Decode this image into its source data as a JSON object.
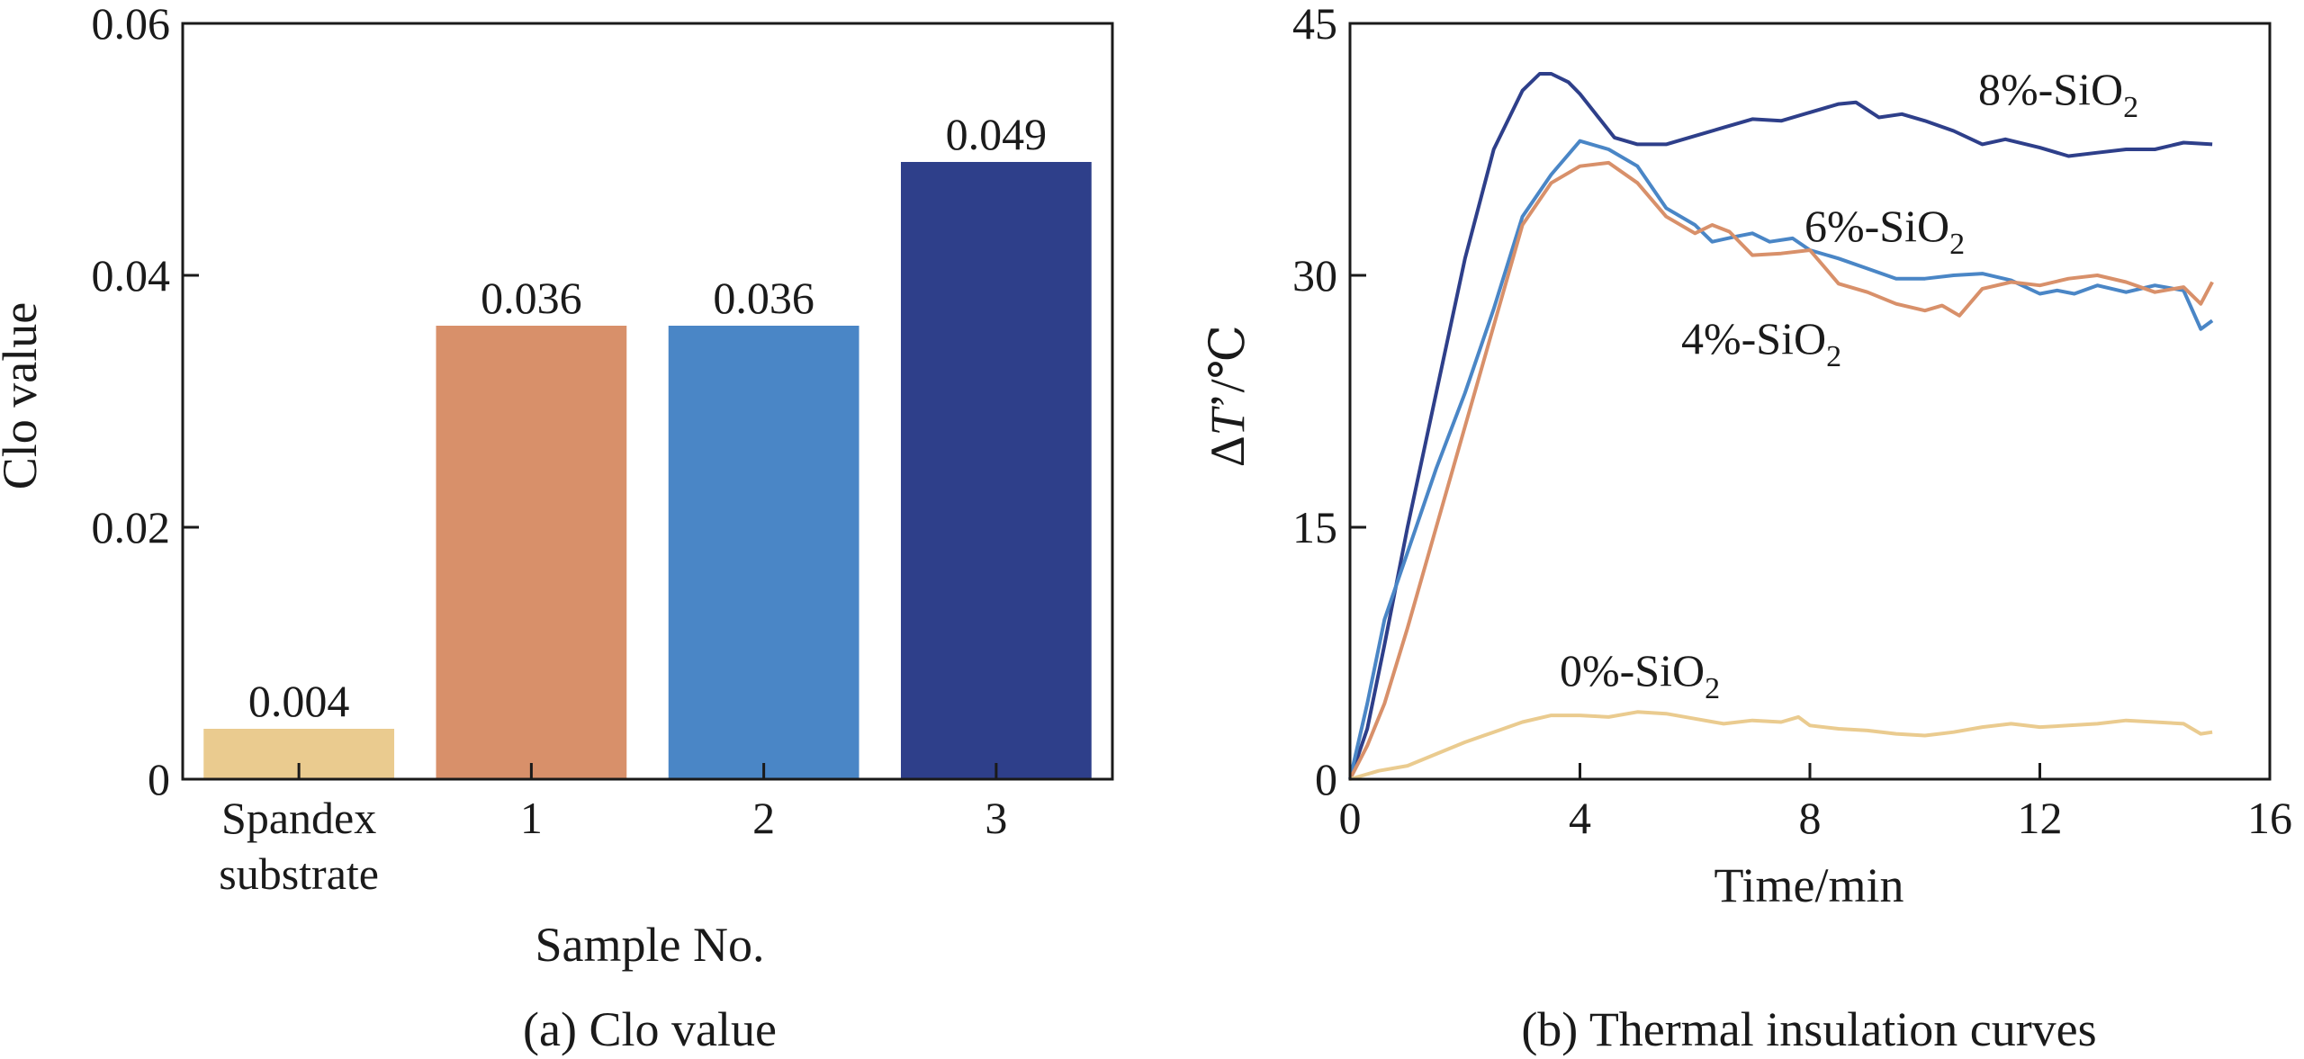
{
  "chart_data": [
    {
      "type": "bar",
      "title": "",
      "caption": "(a) Clo value",
      "xlabel": "Sample No.",
      "ylabel": "Clo value",
      "ylim": [
        0,
        0.06
      ],
      "yticks": [
        "0",
        "0.02",
        "0.04",
        "0.06"
      ],
      "ytick_values": [
        0,
        0.02,
        0.04,
        0.06
      ],
      "categories": [
        {
          "line1": "Spandex",
          "line2": "substrate"
        },
        {
          "line1": "1",
          "line2": ""
        },
        {
          "line1": "2",
          "line2": ""
        },
        {
          "line1": "3",
          "line2": ""
        }
      ],
      "values": [
        0.004,
        0.036,
        0.036,
        0.049
      ],
      "value_labels": [
        "0.004",
        "0.036",
        "0.036",
        "0.049"
      ],
      "colors": [
        "#EACB8F",
        "#D8906A",
        "#4A86C6",
        "#2E3F8A"
      ]
    },
    {
      "type": "line",
      "title": "",
      "caption": "(b) Thermal insulation curves",
      "xlabel": "Time/min",
      "ylabel_parts": {
        "prefix": "Δ",
        "var": "T",
        "suffix": "’/℃"
      },
      "xlim": [
        0,
        16
      ],
      "ylim": [
        0,
        45
      ],
      "xticks": [
        "0",
        "4",
        "8",
        "12",
        "16"
      ],
      "xtick_values": [
        0,
        4,
        8,
        12,
        16
      ],
      "yticks": [
        "0",
        "15",
        "30",
        "45"
      ],
      "ytick_values": [
        0,
        15,
        30,
        45
      ],
      "series": [
        {
          "name": "8%-SiO2",
          "label_main": "8%-SiO",
          "label_sub": "2",
          "color": "#2E3F8A",
          "x": [
            0,
            0.3,
            0.6,
            1.0,
            1.5,
            2.0,
            2.5,
            3.0,
            3.3,
            3.5,
            3.8,
            4.0,
            4.3,
            4.6,
            5.0,
            5.5,
            6.0,
            6.5,
            7.0,
            7.5,
            8.0,
            8.5,
            8.8,
            9.2,
            9.6,
            10.0,
            10.5,
            11.0,
            11.4,
            12.0,
            12.5,
            13.0,
            13.5,
            14.0,
            14.5,
            15.0
          ],
          "y": [
            0,
            3,
            8,
            15,
            23,
            31,
            37.5,
            41,
            42,
            42,
            41.5,
            40.8,
            39.5,
            38.2,
            37.8,
            37.8,
            38.3,
            38.8,
            39.3,
            39.2,
            39.7,
            40.2,
            40.3,
            39.4,
            39.6,
            39.2,
            38.6,
            37.8,
            38.1,
            37.6,
            37.1,
            37.3,
            37.5,
            37.5,
            37.9,
            37.8
          ]
        },
        {
          "name": "6%-SiO2",
          "label_main": "6%-SiO",
          "label_sub": "2",
          "color": "#4A86C6",
          "x": [
            0,
            0.3,
            0.6,
            1.0,
            1.5,
            2.0,
            2.5,
            3.0,
            3.5,
            4.0,
            4.5,
            5.0,
            5.5,
            6.0,
            6.3,
            6.7,
            7.0,
            7.3,
            7.7,
            8.0,
            8.5,
            9.0,
            9.5,
            10.0,
            10.5,
            11.0,
            11.5,
            12.0,
            12.3,
            12.6,
            13.0,
            13.5,
            14.0,
            14.5,
            14.8,
            15.0
          ],
          "y": [
            0,
            4.5,
            9.5,
            13.5,
            18.5,
            23,
            28,
            33.5,
            36,
            38,
            37.5,
            36.5,
            34,
            33,
            32,
            32.3,
            32.5,
            32,
            32.2,
            31.5,
            31,
            30.4,
            29.8,
            29.8,
            30,
            30.1,
            29.7,
            28.9,
            29.1,
            28.9,
            29.4,
            29,
            29.4,
            29.1,
            26.8,
            27.3
          ]
        },
        {
          "name": "4%-SiO2",
          "label_main": "4%-SiO",
          "label_sub": "2",
          "color": "#D8906A",
          "x": [
            0,
            0.3,
            0.6,
            1.0,
            1.5,
            2.0,
            2.5,
            3.0,
            3.5,
            4.0,
            4.5,
            5.0,
            5.5,
            6.0,
            6.3,
            6.6,
            7.0,
            7.5,
            8.0,
            8.5,
            9.0,
            9.5,
            10.0,
            10.3,
            10.6,
            11.0,
            11.5,
            12.0,
            12.5,
            13.0,
            13.5,
            14.0,
            14.5,
            14.8,
            15.0
          ],
          "y": [
            0,
            2,
            4.5,
            9,
            15,
            21,
            27,
            33,
            35.5,
            36.5,
            36.7,
            35.5,
            33.5,
            32.5,
            33,
            32.6,
            31.2,
            31.3,
            31.5,
            29.5,
            29,
            28.3,
            27.9,
            28.2,
            27.6,
            29.2,
            29.6,
            29.4,
            29.8,
            30,
            29.6,
            29,
            29.3,
            28.3,
            29.6
          ]
        },
        {
          "name": "0%-SiO2",
          "label_main": "0%-SiO",
          "label_sub": "2",
          "color": "#EACB8F",
          "x": [
            0,
            0.5,
            1.0,
            1.5,
            2.0,
            2.5,
            3.0,
            3.5,
            4.0,
            4.5,
            5.0,
            5.5,
            6.0,
            6.5,
            7.0,
            7.5,
            7.8,
            8.0,
            8.5,
            9.0,
            9.5,
            10.0,
            10.5,
            11.0,
            11.5,
            12.0,
            12.5,
            13.0,
            13.5,
            14.0,
            14.5,
            14.8,
            15.0
          ],
          "y": [
            0,
            0.5,
            0.8,
            1.5,
            2.2,
            2.8,
            3.4,
            3.8,
            3.8,
            3.7,
            4.0,
            3.9,
            3.6,
            3.3,
            3.5,
            3.4,
            3.7,
            3.2,
            3.0,
            2.9,
            2.7,
            2.6,
            2.8,
            3.1,
            3.3,
            3.1,
            3.2,
            3.3,
            3.5,
            3.4,
            3.3,
            2.7,
            2.8
          ]
        }
      ]
    }
  ]
}
